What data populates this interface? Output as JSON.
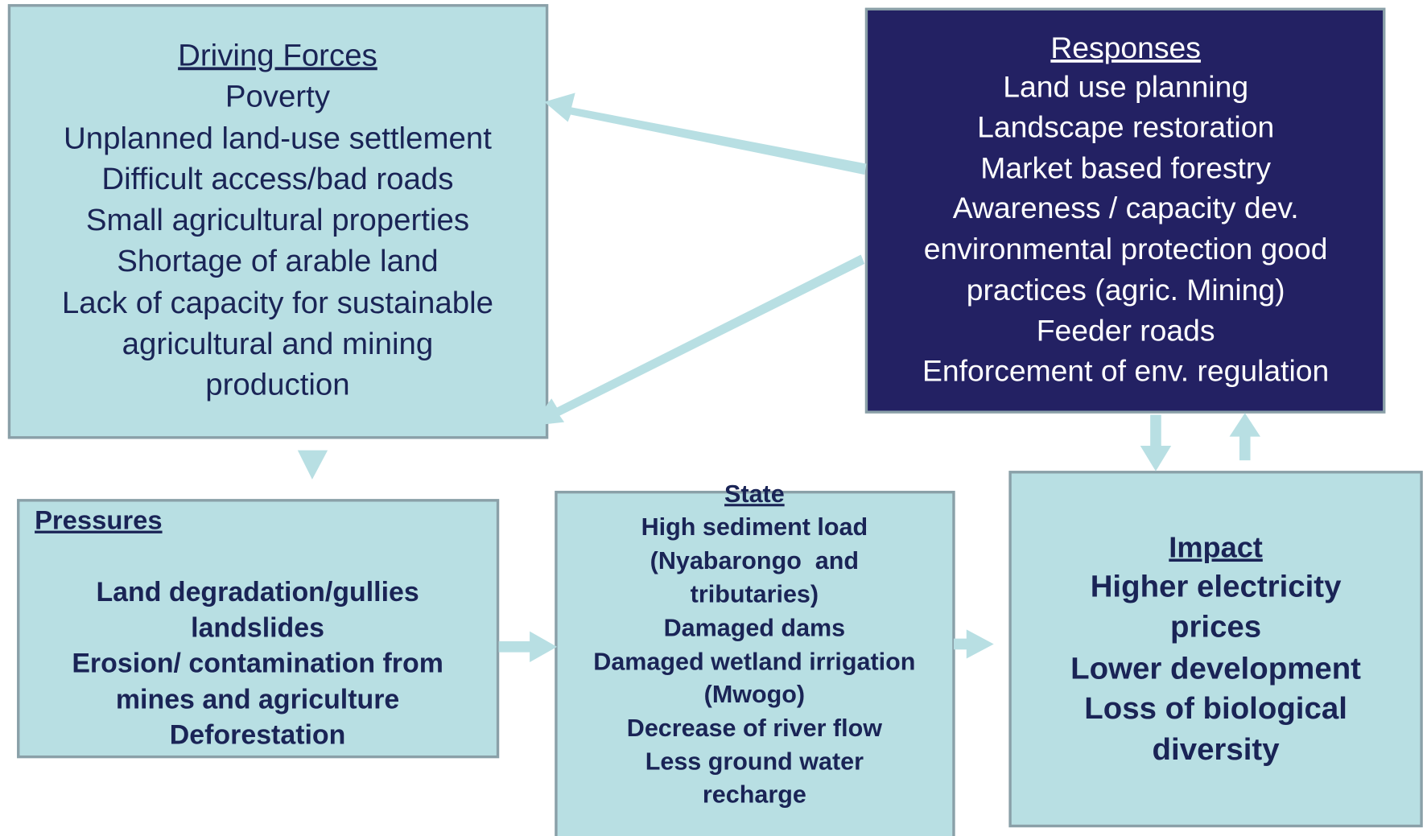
{
  "nodes": [
    {
      "title": "Driving Forces",
      "lines": [
        "Poverty",
        "Unplanned land-use settlement",
        "Difficult access/bad roads",
        "Small agricultural properties",
        "Shortage of arable land",
        "Lack of capacity for sustainable",
        "agricultural and mining",
        "production"
      ]
    },
    {
      "title": "Responses",
      "lines": [
        "Land use planning",
        "Landscape restoration",
        "Market based forestry",
        "Awareness / capacity dev.",
        "environmental protection good",
        "practices (agric. Mining)",
        "Feeder roads",
        "Enforcement of env. regulation"
      ]
    },
    {
      "title": "Pressures",
      "lines": [
        "Land degradation/gullies",
        "landslides",
        "Erosion/ contamination from",
        "mines and agriculture",
        "Deforestation"
      ]
    },
    {
      "title": "State",
      "lines": [
        "High sediment load",
        "(Nyabarongo  and",
        "tributaries)",
        "Damaged dams",
        "Damaged wetland irrigation",
        "(Mwogo)",
        "Decrease of river flow",
        "Less ground water",
        "recharge"
      ]
    },
    {
      "title": "Impact",
      "lines": [
        "Higher electricity",
        "prices",
        "Lower development",
        "Loss of biological",
        "diversity"
      ]
    }
  ]
}
